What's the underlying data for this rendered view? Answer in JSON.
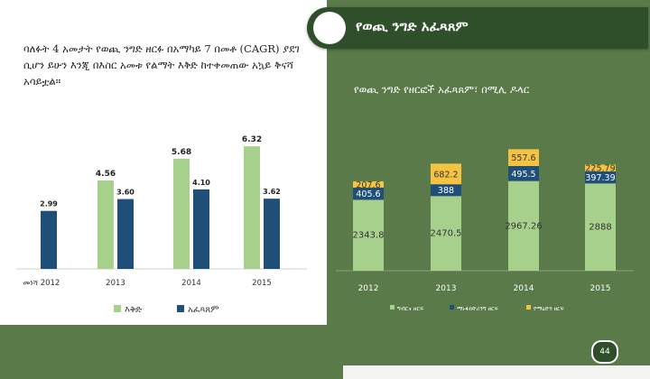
{
  "header": {
    "title": "የወጪ ንግድ አፈጻጸም"
  },
  "left_text": "ባለፉት 4 አመታት የወጪ ንግድ ዘርፉ በአማካይ 7 በመቶ (CAGR) ያደገ ሲሆን ይሁን እንጂ በእስር አመቱ የልማት እቅድ ከተቀመጠው አኳይ ቅናሻ አሳይቷል።",
  "right_subtitle": "የወጪ ንግድ የዘርፎች አፈጻጸም፣ በሚሊ ዶላር",
  "page_number": "44",
  "colors": {
    "plan": "#a8d08d",
    "actual": "#1f4e79",
    "agri": "#a8d08d",
    "manu": "#1f4e79",
    "mining": "#f5c342"
  },
  "chart_data": [
    {
      "type": "bar",
      "categories": [
        "መነሻ 2012",
        "2013",
        "2014",
        "2015"
      ],
      "series": [
        {
          "name": "እቅድ",
          "values": [
            null,
            4.56,
            5.68,
            6.32
          ]
        },
        {
          "name": "አፈጻጸም",
          "values": [
            2.99,
            3.6,
            4.1,
            3.62
          ]
        }
      ],
      "data_labels": {
        "plan": [
          "",
          "4.56",
          "5.68",
          "6.32"
        ],
        "actual": [
          "2.99",
          "3.60",
          "4.10",
          "3.62"
        ]
      },
      "ylim": [
        0,
        7
      ],
      "legend": "bottom"
    },
    {
      "type": "bar",
      "stacked": true,
      "categories": [
        "2012",
        "2013",
        "2014",
        "2015"
      ],
      "series": [
        {
          "name": "ግብርና ዘርፍ",
          "values": [
            2343.8,
            2470.5,
            2967.26,
            2888
          ]
        },
        {
          "name": "ማኑፋክቸሪንግ ዘርፍ",
          "values": [
            405.6,
            388,
            495.5,
            397.39
          ]
        },
        {
          "name": "የማዕድን ዘርፍ",
          "values": [
            207.6,
            682.2,
            557.6,
            225.79
          ]
        }
      ],
      "data_labels": {
        "agri": [
          "2343.8",
          "2470.5",
          "2967.26",
          "2888"
        ],
        "manu": [
          "405.6",
          "388",
          "495.5",
          "397.39"
        ],
        "mining": [
          "207.6",
          "682.2",
          "557.6",
          "225.79"
        ]
      },
      "ylim": [
        0,
        4200
      ],
      "legend": "bottom"
    }
  ]
}
